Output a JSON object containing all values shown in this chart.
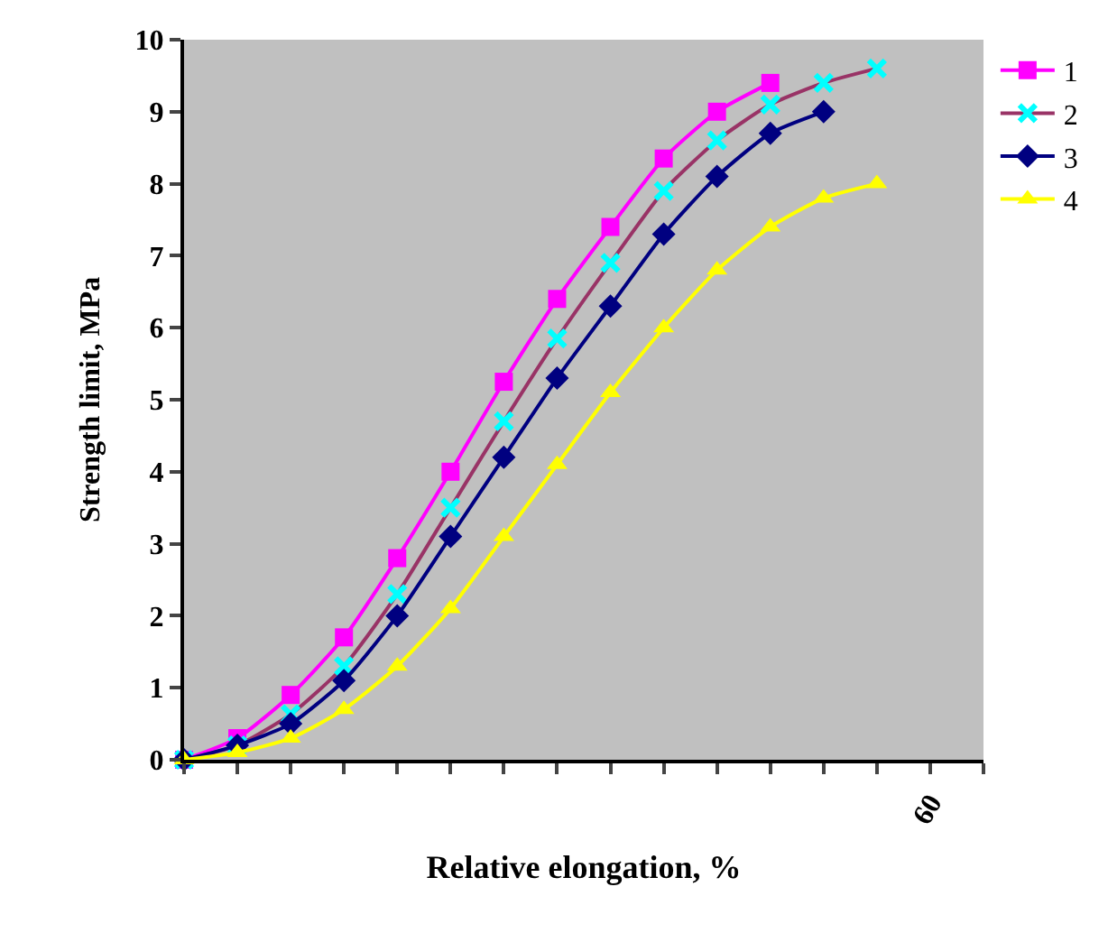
{
  "chart_data": {
    "type": "line",
    "xlabel": "Relative elongation, %",
    "ylabel": "Strength limit, MPa",
    "categories": [
      null,
      null,
      null,
      null,
      null,
      null,
      null,
      null,
      null,
      null,
      null,
      null,
      null,
      null,
      "60",
      null
    ],
    "ylim": [
      0,
      10
    ],
    "yticks": [
      0,
      1,
      2,
      3,
      4,
      5,
      6,
      7,
      8,
      9,
      10
    ],
    "grid": false,
    "legend": "top right",
    "series": [
      {
        "name": "1",
        "color": "#ff00ff",
        "marker": "square",
        "values": [
          0,
          0.3,
          0.9,
          1.7,
          2.8,
          4.0,
          5.25,
          6.4,
          7.4,
          8.35,
          9.0,
          9.4,
          null,
          null,
          null,
          null
        ]
      },
      {
        "name": "2",
        "color": "#993366",
        "colors": [
          "#00ffff",
          "#00ffff",
          "#00ffff",
          "#00ffff",
          "#00ffff",
          "#00ffff",
          "#00ffff",
          "#00ffff",
          "#00ffff",
          "#00ffff",
          "#00ffff",
          "#00ffff",
          "#00ffff",
          "#00ffff",
          null,
          null
        ],
        "marker": "cross",
        "values": [
          0,
          0.2,
          0.63,
          1.3,
          2.3,
          3.5,
          4.7,
          5.85,
          6.9,
          7.9,
          8.6,
          9.1,
          9.4,
          9.6,
          null,
          null
        ]
      },
      {
        "name": "3",
        "color": "#000080",
        "marker": "diamond",
        "values": [
          0,
          0.2,
          0.5,
          1.1,
          2.0,
          3.1,
          4.2,
          5.3,
          6.3,
          7.3,
          8.1,
          8.7,
          9.0,
          null,
          null,
          null
        ]
      },
      {
        "name": "4",
        "color": "#ffff00",
        "marker": "triangle",
        "values": [
          0,
          0.1,
          0.3,
          0.7,
          1.3,
          2.1,
          3.1,
          4.1,
          5.1,
          6.0,
          6.8,
          7.4,
          7.8,
          8.0,
          null,
          null
        ]
      }
    ]
  }
}
